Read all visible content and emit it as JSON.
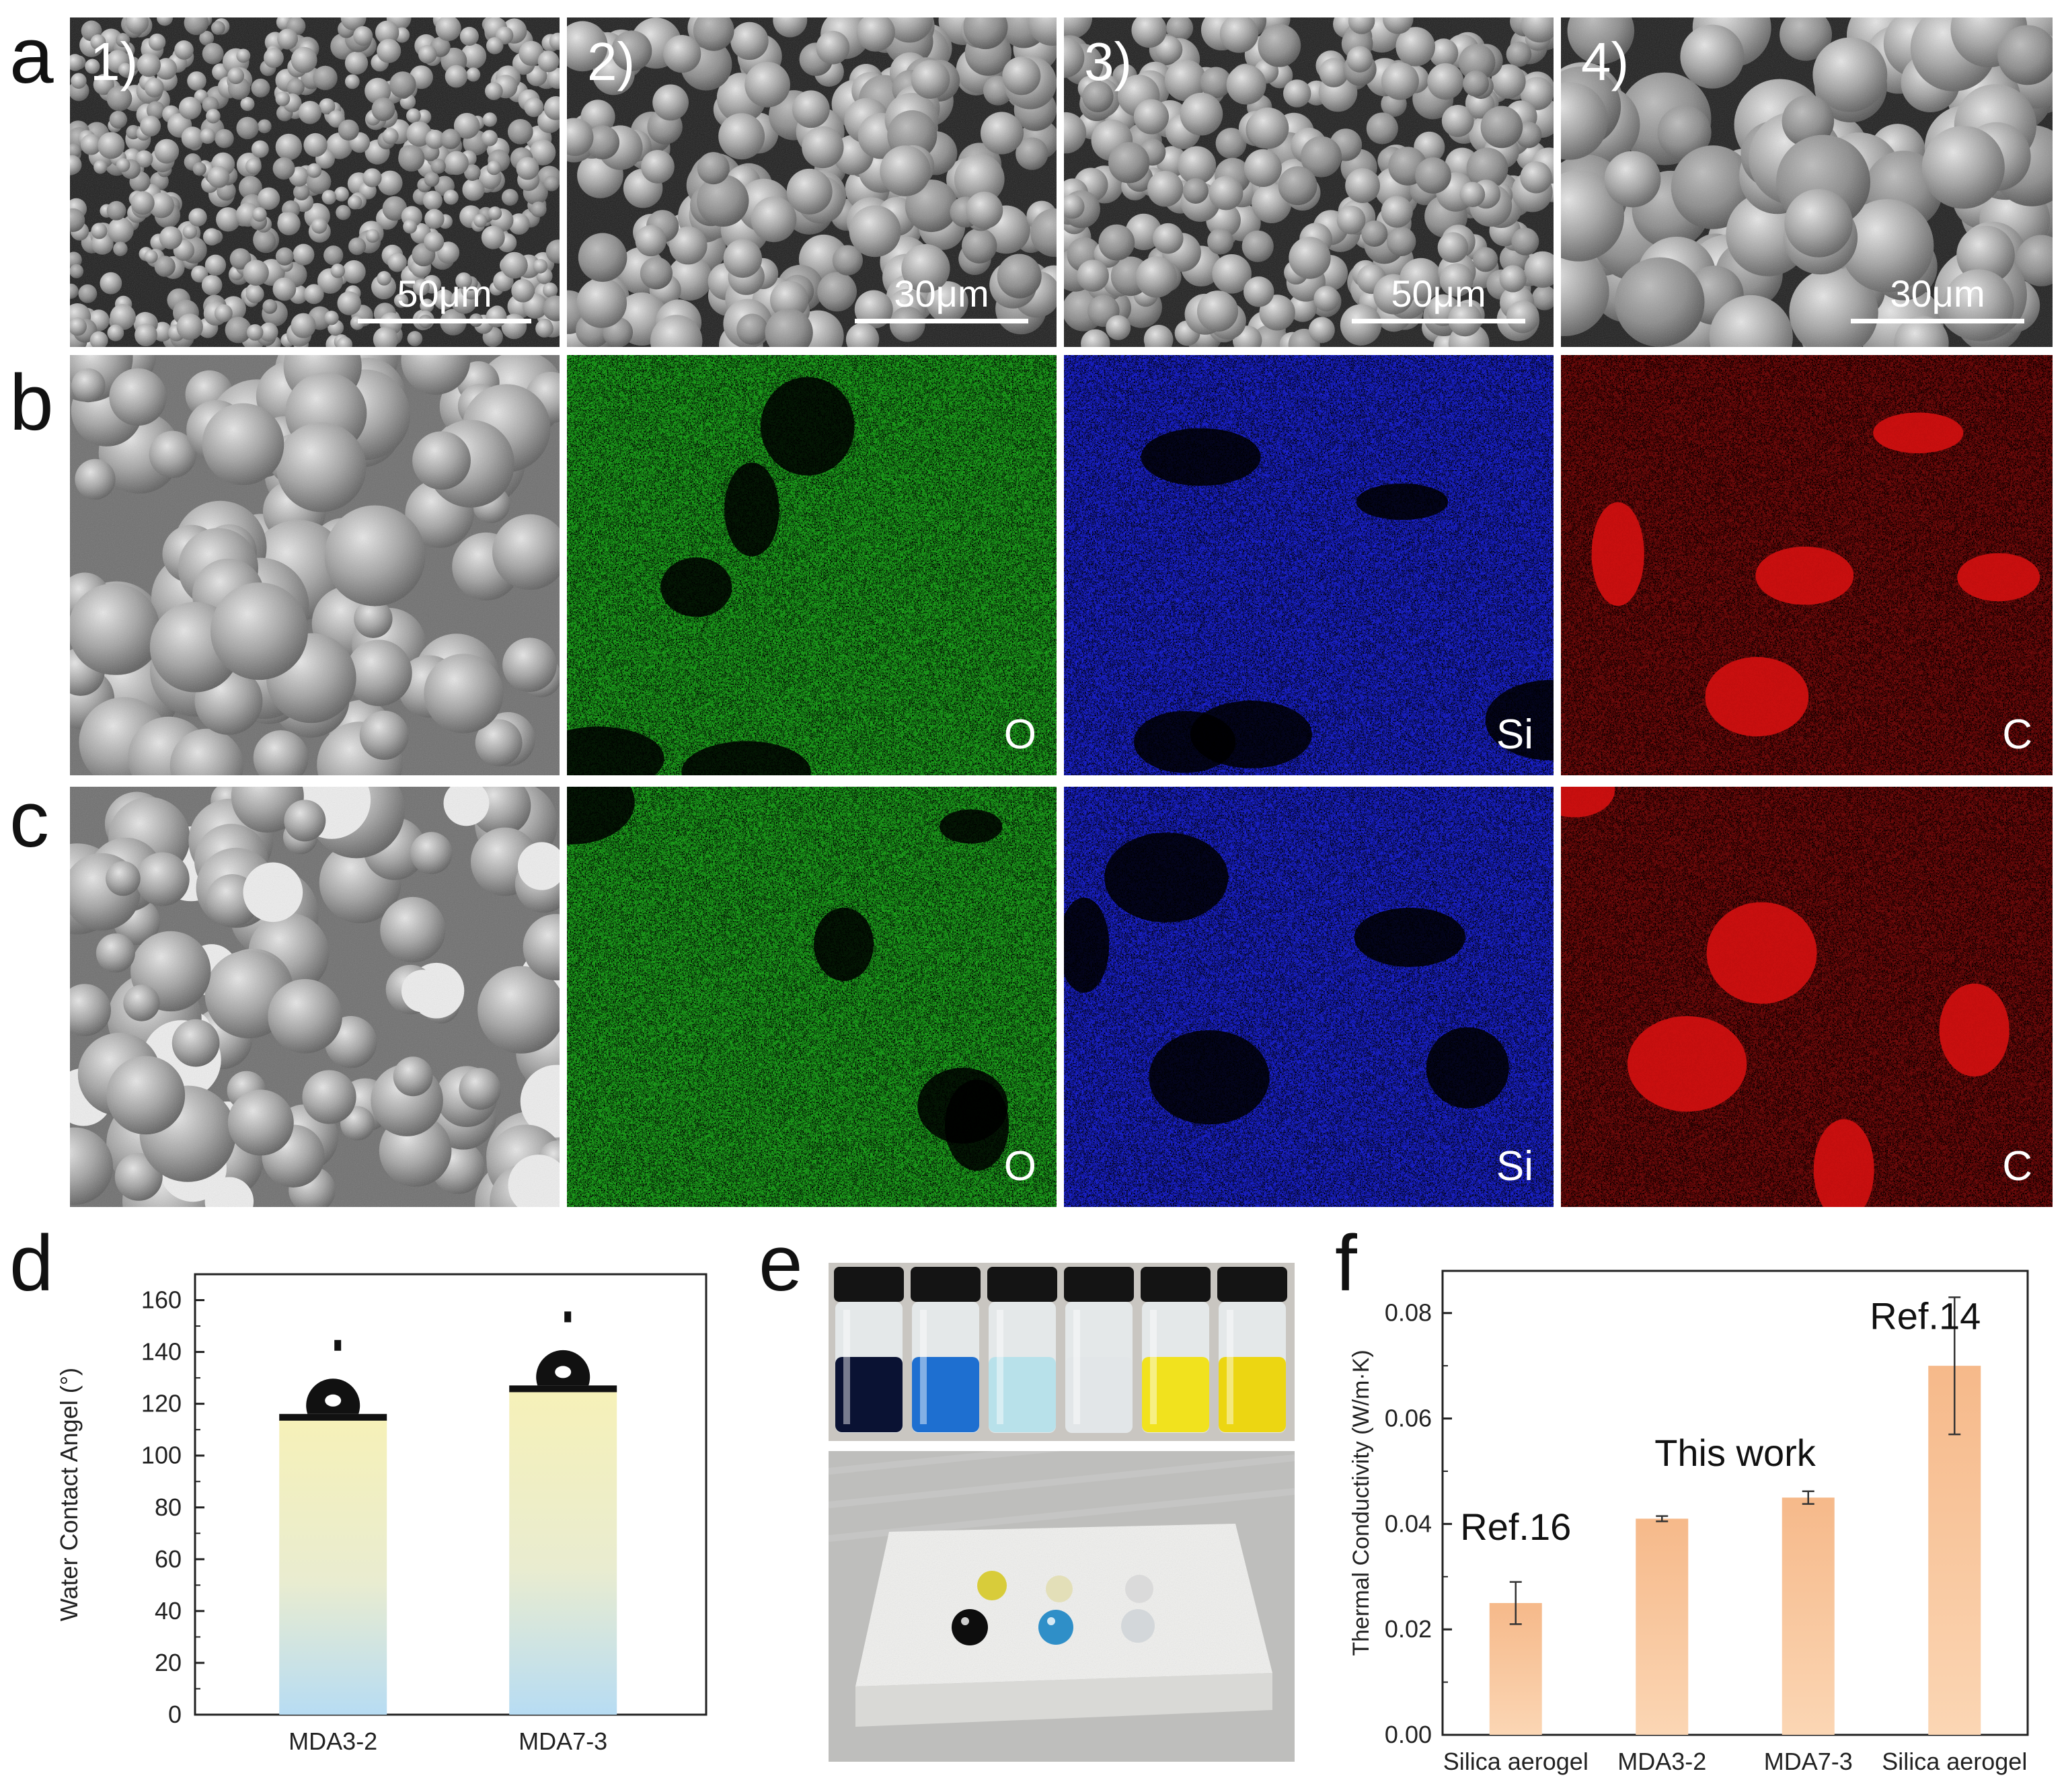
{
  "panel_labels": {
    "a": "a",
    "b": "b",
    "c": "c",
    "d": "d",
    "e": "e",
    "f": "f"
  },
  "sem_row_a": [
    {
      "num": "1)",
      "scale": "50μm"
    },
    {
      "num": "2)",
      "scale": "30μm"
    },
    {
      "num": "3)",
      "scale": "50μm"
    },
    {
      "num": "4)",
      "scale": "30μm"
    }
  ],
  "eds_labels": {
    "o": "O",
    "si": "Si",
    "c": "C"
  },
  "colors": {
    "oxygen": "#1fa81f",
    "silicon": "#1a23d6",
    "carbon": "#d41010",
    "bar_f": "#f7c49a",
    "bar_d_top": "#f4efb8",
    "bar_d_bottom": "#b9dcf2"
  },
  "chart_data": [
    {
      "type": "bar",
      "panel": "d",
      "categories": [
        "MDA3-2",
        "MDA7-3"
      ],
      "values": [
        114,
        125
      ],
      "ylabel": "Water Contact Angel (°)",
      "ylim": [
        0,
        170
      ],
      "yticks": [
        0,
        20,
        40,
        60,
        80,
        100,
        120,
        140,
        160
      ],
      "grid": false
    },
    {
      "type": "bar",
      "panel": "f",
      "categories": [
        "Silica aerogel",
        "MDA3-2",
        "MDA7-3",
        "Silica aerogel"
      ],
      "values": [
        0.025,
        0.041,
        0.045,
        0.07
      ],
      "errors": [
        0.004,
        0.0005,
        0.0012,
        0.013
      ],
      "ylabel": "Thermal Conductivity (W/m·K)",
      "ylim": [
        0,
        0.088
      ],
      "yticks": [
        "0.00",
        "0.02",
        "0.04",
        "0.06",
        "0.08"
      ],
      "annotations": [
        "Ref.16",
        "This work",
        "Ref.14"
      ],
      "grid": false
    }
  ]
}
